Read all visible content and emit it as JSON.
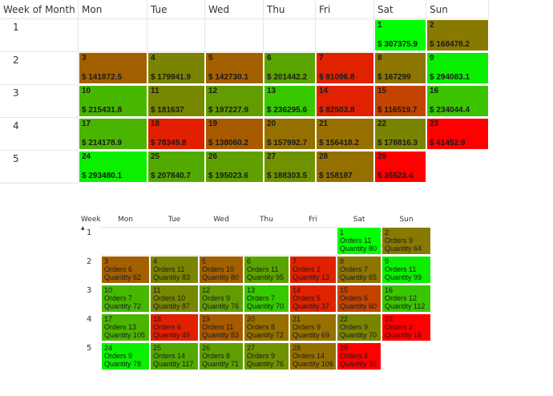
{
  "calendar1": {
    "headers": [
      "Week of Month",
      "Mon",
      "Tue",
      "Wed",
      "Thu",
      "Fri",
      "Sat",
      "Sun"
    ],
    "weeks": [
      "1",
      "2",
      "3",
      "4",
      "5"
    ],
    "days": [
      {
        "day": "1",
        "value": "$ 307375.9",
        "color": "#00ff00",
        "dow": 6,
        "week": 1
      },
      {
        "day": "2",
        "value": "$ 168478.2",
        "color": "#887a00",
        "dow": 7,
        "week": 1
      },
      {
        "day": "3",
        "value": "$ 141872.5",
        "color": "#a36000",
        "dow": 1,
        "week": 2
      },
      {
        "day": "4",
        "value": "$ 179941.9",
        "color": "#7b8400",
        "dow": 2,
        "week": 2
      },
      {
        "day": "5",
        "value": "$ 142730.1",
        "color": "#a36000",
        "dow": 3,
        "week": 2
      },
      {
        "day": "6",
        "value": "$ 201442.2",
        "color": "#5aa400",
        "dow": 4,
        "week": 2
      },
      {
        "day": "7",
        "value": "$ 81096.8",
        "color": "#e02200",
        "dow": 5,
        "week": 2
      },
      {
        "day": "8",
        "value": "$ 167299",
        "color": "#8c7600",
        "dow": 6,
        "week": 2
      },
      {
        "day": "9",
        "value": "$ 294083.1",
        "color": "#0aef00",
        "dow": 7,
        "week": 2
      },
      {
        "day": "10",
        "value": "$ 215431.8",
        "color": "#48b700",
        "dow": 1,
        "week": 3
      },
      {
        "day": "11",
        "value": "$ 181637",
        "color": "#788700",
        "dow": 2,
        "week": 3
      },
      {
        "day": "12",
        "value": "$ 197227.9",
        "color": "#639c00",
        "dow": 3,
        "week": 3
      },
      {
        "day": "13",
        "value": "$ 236295.6",
        "color": "#37c800",
        "dow": 4,
        "week": 3
      },
      {
        "day": "14",
        "value": "$ 82503.8",
        "color": "#e02200",
        "dow": 5,
        "week": 3
      },
      {
        "day": "15",
        "value": "$ 116519.7",
        "color": "#c24400",
        "dow": 6,
        "week": 3
      },
      {
        "day": "16",
        "value": "$ 234044.4",
        "color": "#3ac500",
        "dow": 7,
        "week": 3
      },
      {
        "day": "17",
        "value": "$ 214178.9",
        "color": "#4ab500",
        "dow": 1,
        "week": 4
      },
      {
        "day": "18",
        "value": "$ 78349.8",
        "color": "#e22000",
        "dow": 2,
        "week": 4
      },
      {
        "day": "19",
        "value": "$ 138060.2",
        "color": "#a85a00",
        "dow": 3,
        "week": 4
      },
      {
        "day": "20",
        "value": "$ 157992.7",
        "color": "#957000",
        "dow": 4,
        "week": 4
      },
      {
        "day": "21",
        "value": "$ 156418.2",
        "color": "#977000",
        "dow": 5,
        "week": 4
      },
      {
        "day": "22",
        "value": "$ 178816.3",
        "color": "#7b8400",
        "dow": 6,
        "week": 4
      },
      {
        "day": "23",
        "value": "$ 41452.9",
        "color": "#ff0000",
        "dow": 7,
        "week": 4
      },
      {
        "day": "24",
        "value": "$ 293480.1",
        "color": "#0af000",
        "dow": 1,
        "week": 5
      },
      {
        "day": "25",
        "value": "$ 207840.7",
        "color": "#52aa00",
        "dow": 2,
        "week": 5
      },
      {
        "day": "26",
        "value": "$ 195023.6",
        "color": "#5fa000",
        "dow": 3,
        "week": 5
      },
      {
        "day": "27",
        "value": "$ 188303.5",
        "color": "#6e9200",
        "dow": 4,
        "week": 5
      },
      {
        "day": "28",
        "value": "$ 158187",
        "color": "#957000",
        "dow": 5,
        "week": 5
      },
      {
        "day": "29",
        "value": "$ 35523.4",
        "color": "#ff0000",
        "dow": 6,
        "week": 5
      }
    ]
  },
  "calendar2": {
    "headers": [
      "Week",
      "Mon",
      "Tue",
      "Wed",
      "Thu",
      "Fri",
      "Sat",
      "Sun"
    ],
    "sort_indicator": "▲",
    "weeks": [
      "1",
      "2",
      "3",
      "4",
      "5"
    ],
    "days": [
      {
        "day": "1",
        "orders": "Orders 11",
        "quantity": "Quantity 80",
        "color": "#00ff00",
        "dow": 6,
        "week": 1
      },
      {
        "day": "2",
        "orders": "Orders 9",
        "quantity": "Quantity 64",
        "color": "#887a00",
        "dow": 7,
        "week": 1
      },
      {
        "day": "3",
        "orders": "Orders 6",
        "quantity": "Quantity 62",
        "color": "#a36000",
        "dow": 1,
        "week": 2
      },
      {
        "day": "4",
        "orders": "Orders 11",
        "quantity": "Quantity 83",
        "color": "#7b8400",
        "dow": 2,
        "week": 2
      },
      {
        "day": "5",
        "orders": "Orders 10",
        "quantity": "Quantity 80",
        "color": "#a36000",
        "dow": 3,
        "week": 2
      },
      {
        "day": "6",
        "orders": "Orders 11",
        "quantity": "Quantity 95",
        "color": "#5aa400",
        "dow": 4,
        "week": 2
      },
      {
        "day": "7",
        "orders": "Orders 2",
        "quantity": "Quantity 13",
        "color": "#e02200",
        "dow": 5,
        "week": 2
      },
      {
        "day": "8",
        "orders": "Orders 7",
        "quantity": "Quantity 65",
        "color": "#8c7600",
        "dow": 6,
        "week": 2
      },
      {
        "day": "9",
        "orders": "Orders 11",
        "quantity": "Quantity 99",
        "color": "#0aef00",
        "dow": 7,
        "week": 2
      },
      {
        "day": "10",
        "orders": "Orders 7",
        "quantity": "Quantity 72",
        "color": "#48b700",
        "dow": 1,
        "week": 3
      },
      {
        "day": "11",
        "orders": "Orders 10",
        "quantity": "Quantity 87",
        "color": "#788700",
        "dow": 2,
        "week": 3
      },
      {
        "day": "12",
        "orders": "Orders 9",
        "quantity": "Quantity 76",
        "color": "#639c00",
        "dow": 3,
        "week": 3
      },
      {
        "day": "13",
        "orders": "Orders 7",
        "quantity": "Quantity 70",
        "color": "#37c800",
        "dow": 4,
        "week": 3
      },
      {
        "day": "14",
        "orders": "Orders 5",
        "quantity": "Quantity 37",
        "color": "#e02200",
        "dow": 5,
        "week": 3
      },
      {
        "day": "15",
        "orders": "Orders 6",
        "quantity": "Quantity 60",
        "color": "#c24400",
        "dow": 6,
        "week": 3
      },
      {
        "day": "16",
        "orders": "Orders 12",
        "quantity": "Quantity 112",
        "color": "#3ac500",
        "dow": 7,
        "week": 3
      },
      {
        "day": "17",
        "orders": "Orders 13",
        "quantity": "Quantity 105",
        "color": "#4ab500",
        "dow": 1,
        "week": 4
      },
      {
        "day": "18",
        "orders": "Orders 6",
        "quantity": "Quantity 49",
        "color": "#e22000",
        "dow": 2,
        "week": 4
      },
      {
        "day": "19",
        "orders": "Orders 11",
        "quantity": "Quantity 83",
        "color": "#a85a00",
        "dow": 3,
        "week": 4
      },
      {
        "day": "20",
        "orders": "Orders 8",
        "quantity": "Quantity 72",
        "color": "#957000",
        "dow": 4,
        "week": 4
      },
      {
        "day": "21",
        "orders": "Orders 9",
        "quantity": "Quantity 69",
        "color": "#977000",
        "dow": 5,
        "week": 4
      },
      {
        "day": "22",
        "orders": "Orders 9",
        "quantity": "Quantity 70",
        "color": "#7b8400",
        "dow": 6,
        "week": 4
      },
      {
        "day": "23",
        "orders": "Orders 2",
        "quantity": "Quantity 16",
        "color": "#ff0000",
        "dow": 7,
        "week": 4
      },
      {
        "day": "24",
        "orders": "Orders 9",
        "quantity": "Quantity 78",
        "color": "#0af000",
        "dow": 1,
        "week": 5
      },
      {
        "day": "25",
        "orders": "Orders 14",
        "quantity": "Quantity 117",
        "color": "#52aa00",
        "dow": 2,
        "week": 5
      },
      {
        "day": "26",
        "orders": "Orders 8",
        "quantity": "Quantity 71",
        "color": "#5fa000",
        "dow": 3,
        "week": 5
      },
      {
        "day": "27",
        "orders": "Orders 9",
        "quantity": "Quantity 76",
        "color": "#6e9200",
        "dow": 4,
        "week": 5
      },
      {
        "day": "28",
        "orders": "Orders 14",
        "quantity": "Quantity 106",
        "color": "#957000",
        "dow": 5,
        "week": 5
      },
      {
        "day": "29",
        "orders": "Orders 4",
        "quantity": "Quantity 35",
        "color": "#ff0000",
        "dow": 6,
        "week": 5
      }
    ]
  }
}
